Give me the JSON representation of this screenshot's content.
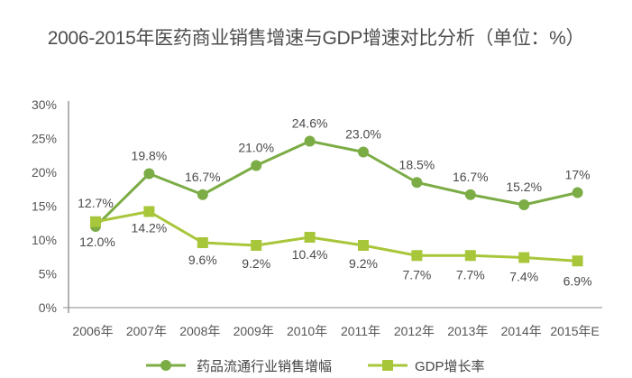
{
  "title": "2006-2015年医药商业销售增速与GDP增速对比分析（单位：%）",
  "chart_data": {
    "type": "line",
    "title": "2006-2015年医药商业销售增速与GDP增速对比分析（单位：%）",
    "xlabel": "",
    "ylabel": "",
    "categories": [
      "2006年",
      "2007年",
      "2008年",
      "2009年",
      "2010年",
      "2011年",
      "2012年",
      "2013年",
      "2014年",
      "2015年E"
    ],
    "ylim": [
      0,
      30
    ],
    "yticks": [
      "0%",
      "5%",
      "10%",
      "15%",
      "20%",
      "25%",
      "30%"
    ],
    "grid": false,
    "legend_position": "bottom",
    "series": [
      {
        "name": "药品流通行业销售增幅",
        "marker": "circle",
        "color": "#7cac45",
        "values": [
          12.0,
          19.8,
          16.7,
          21.0,
          24.6,
          23.0,
          18.5,
          16.7,
          15.2,
          17
        ],
        "labels": [
          "12.0%",
          "19.8%",
          "16.7%",
          "21.0%",
          "24.6%",
          "23.0%",
          "18.5%",
          "16.7%",
          "15.2%",
          "17%"
        ]
      },
      {
        "name": "GDP增长率",
        "marker": "square",
        "color": "#a8c63a",
        "values": [
          12.7,
          14.2,
          9.6,
          9.2,
          10.4,
          9.2,
          7.7,
          7.7,
          7.4,
          6.9
        ],
        "labels": [
          "12.7%",
          "14.2%",
          "9.6%",
          "9.2%",
          "10.4%",
          "9.2%",
          "7.7%",
          "7.7%",
          "7.4%",
          "6.9%"
        ]
      }
    ]
  }
}
